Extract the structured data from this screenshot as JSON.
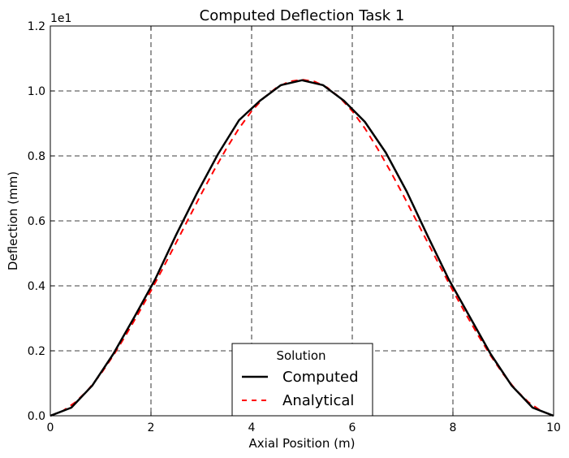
{
  "chart_data": {
    "type": "line",
    "title": "Computed Deflection Task 1",
    "xlabel": "Axial Position (m)",
    "ylabel": "Deflection (mm)",
    "y_offset_text": "1e1",
    "xlim": [
      0,
      10
    ],
    "ylim": [
      0,
      1.2
    ],
    "x_ticks": [
      0,
      2,
      4,
      6,
      8,
      10
    ],
    "x_tick_labels": [
      "0",
      "2",
      "4",
      "6",
      "8",
      "10"
    ],
    "y_ticks": [
      0,
      0.2,
      0.4,
      0.6,
      0.8,
      1.0,
      1.2
    ],
    "y_tick_labels": [
      "0.0",
      "0.2",
      "0.4",
      "0.6",
      "0.8",
      "1.0",
      "1.2"
    ],
    "grid": true,
    "legend": {
      "title": "Solution",
      "placement": "lower-center",
      "entries": [
        "Computed",
        "Analytical"
      ]
    },
    "series": [
      {
        "name": "Computed",
        "color": "#000000",
        "style": "solid",
        "x": [
          0,
          0.417,
          0.833,
          1.25,
          1.667,
          2.083,
          2.5,
          2.917,
          3.333,
          3.75,
          4.167,
          4.583,
          5.0,
          5.417,
          5.833,
          6.25,
          6.667,
          7.083,
          7.5,
          7.917,
          8.333,
          8.75,
          9.167,
          9.583,
          10
        ],
        "y": [
          0,
          0.025,
          0.093,
          0.19,
          0.303,
          0.42,
          0.557,
          0.686,
          0.806,
          0.91,
          0.97,
          1.018,
          1.033,
          1.018,
          0.97,
          0.905,
          0.81,
          0.69,
          0.553,
          0.42,
          0.305,
          0.19,
          0.093,
          0.025,
          0
        ]
      },
      {
        "name": "Analytical",
        "color": "#ff0000",
        "style": "dashed",
        "x": [
          0,
          0.25,
          0.5,
          0.75,
          1.0,
          1.25,
          1.5,
          1.75,
          2.0,
          2.25,
          2.5,
          2.75,
          3.0,
          3.25,
          3.5,
          3.75,
          4.0,
          4.25,
          4.5,
          4.75,
          5.0,
          5.25,
          5.5,
          5.75,
          6.0,
          6.25,
          6.5,
          6.75,
          7.0,
          7.25,
          7.5,
          7.75,
          8.0,
          8.25,
          8.5,
          8.75,
          9.0,
          9.25,
          9.5,
          9.75,
          10.0
        ],
        "y": [
          0,
          0.015,
          0.042,
          0.08,
          0.128,
          0.185,
          0.248,
          0.315,
          0.385,
          0.458,
          0.533,
          0.608,
          0.683,
          0.755,
          0.823,
          0.885,
          0.938,
          0.98,
          1.011,
          1.029,
          1.035,
          1.029,
          1.011,
          0.98,
          0.938,
          0.885,
          0.823,
          0.755,
          0.683,
          0.608,
          0.533,
          0.458,
          0.385,
          0.315,
          0.248,
          0.185,
          0.128,
          0.08,
          0.042,
          0.015,
          0
        ]
      }
    ]
  }
}
